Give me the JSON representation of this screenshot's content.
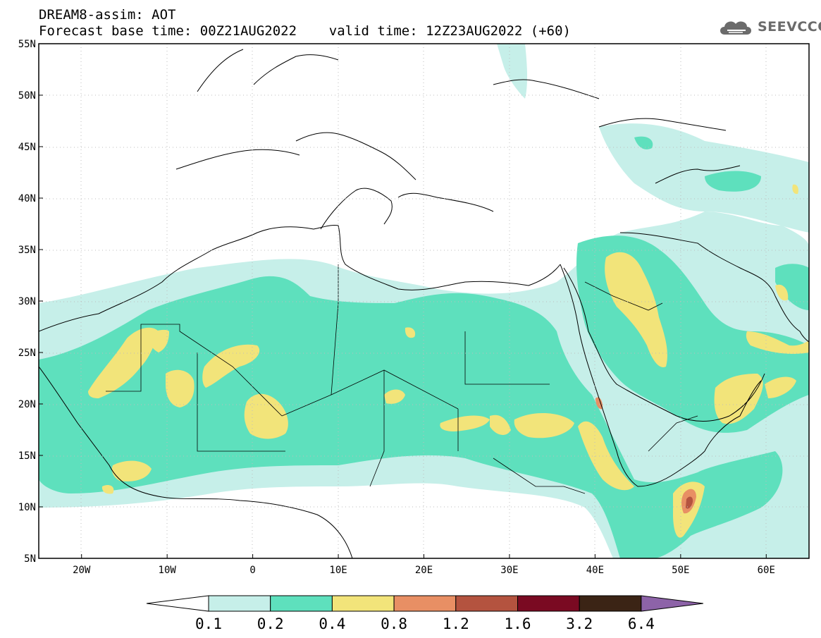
{
  "header": {
    "line1": "DREAM8-assim: AOT",
    "line2": "Forecast base time: 00Z21AUG2022    valid time: 12Z23AUG2022 (+60)"
  },
  "logo": {
    "text": "SEEVCCC",
    "icon": "cloud-icon"
  },
  "map": {
    "lat_labels": [
      "55N",
      "50N",
      "45N",
      "40N",
      "35N",
      "30N",
      "25N",
      "20N",
      "15N",
      "10N",
      "5N"
    ],
    "lat_values": [
      55,
      50,
      45,
      40,
      35,
      30,
      25,
      20,
      15,
      10,
      5
    ],
    "lon_labels": [
      "20W",
      "10W",
      "0",
      "10E",
      "20E",
      "30E",
      "40E",
      "50E",
      "60E"
    ],
    "lon_values": [
      -20,
      -10,
      0,
      10,
      20,
      30,
      40,
      50,
      60
    ],
    "lon_range": [
      -25,
      65
    ],
    "lat_range": [
      5,
      55
    ],
    "gridlines": "dotted"
  },
  "colorbar": {
    "labels": [
      "0.1",
      "0.2",
      "0.4",
      "0.8",
      "1.2",
      "1.6",
      "3.2",
      "6.4"
    ],
    "colors": [
      "#c6efe9",
      "#5ee0bd",
      "#f2e47a",
      "#e88f64",
      "#b4533f",
      "#7a0a22",
      "#3b2415"
    ],
    "under_color": "#ffffff",
    "over_color": "#8d63a8"
  },
  "colors": {
    "aot_0_1": "#c6efe9",
    "aot_0_2": "#5ee0bd",
    "aot_0_4": "#f2e47a",
    "aot_0_8": "#e88f64",
    "aot_1_2": "#b4533f"
  }
}
